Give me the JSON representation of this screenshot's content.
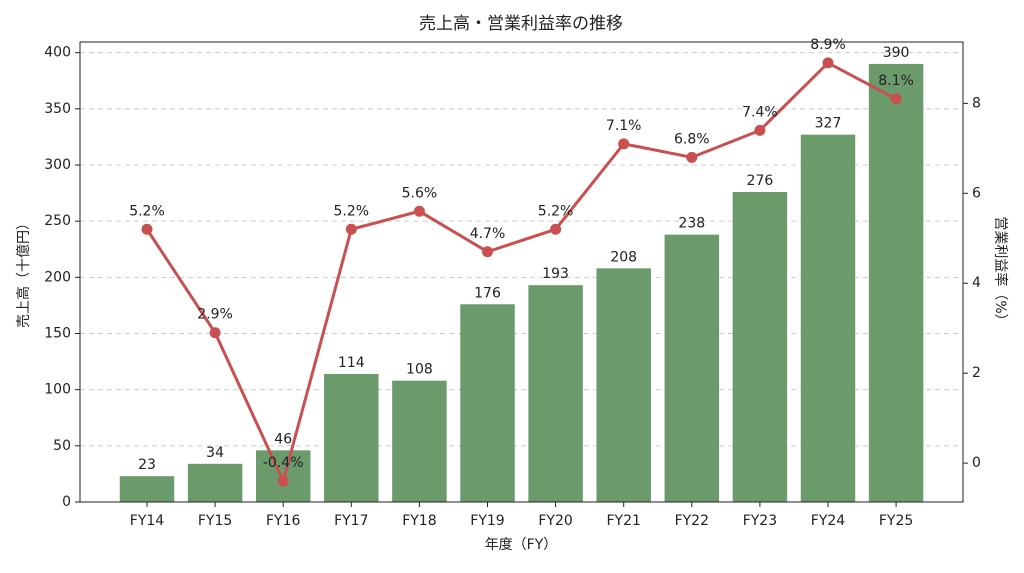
{
  "chart_data": {
    "type": "bar-line",
    "title": "売上高・営業利益率の推移",
    "x_label": "年度（FY）",
    "y_label": "売上高（十億円）",
    "y2_label": "営業利益率（%）",
    "categories": [
      "FY14",
      "FY15",
      "FY16",
      "FY17",
      "FY18",
      "FY19",
      "FY20",
      "FY21",
      "FY22",
      "FY23",
      "FY24",
      "FY25"
    ],
    "series": [
      {
        "type": "bar",
        "color": "#6b9b6b",
        "axis": "y",
        "values": [
          23,
          34,
          46,
          114,
          108,
          176,
          193,
          208,
          238,
          276,
          327,
          390
        ]
      },
      {
        "type": "line",
        "color": "#c85050",
        "axis": "y2",
        "values": [
          5.2,
          2.9,
          -0.4,
          5.2,
          5.6,
          4.7,
          5.2,
          7.1,
          6.8,
          7.4,
          8.9,
          8.1
        ],
        "value_labels": [
          "5.2%",
          "2.9%",
          "-0.4%",
          "5.2%",
          "5.6%",
          "4.7%",
          "5.2%",
          "7.1%",
          "6.8%",
          "7.4%",
          "8.9%",
          "8.1%"
        ]
      }
    ],
    "ylim": [
      0,
      409.5
    ],
    "yticks": [
      0,
      50,
      100,
      150,
      200,
      250,
      300,
      350,
      400
    ],
    "y2lim": [
      -0.865,
      9.365
    ],
    "y2ticks": [
      0,
      2,
      4,
      6,
      8
    ],
    "grid": true
  }
}
